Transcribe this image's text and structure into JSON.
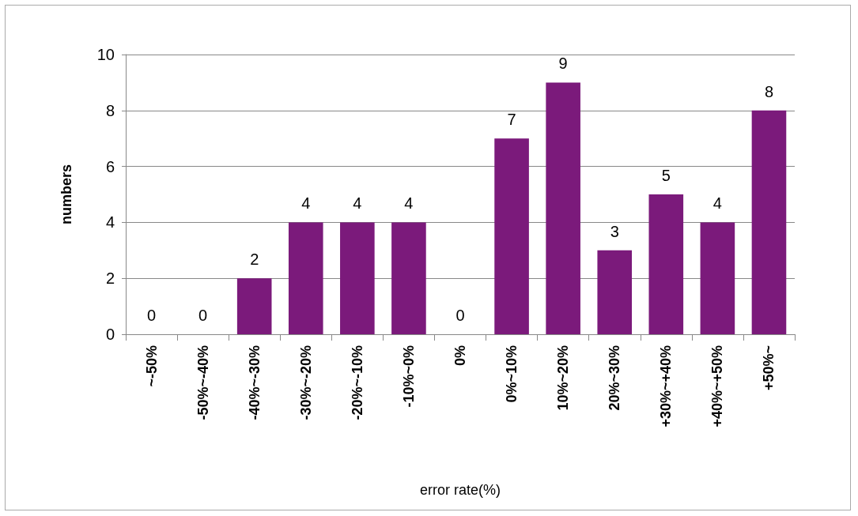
{
  "chart_data": {
    "type": "bar",
    "xlabel": "error rate(%)",
    "ylabel": "numbers",
    "categories": [
      "~-50%",
      "-50%~-40%",
      "-40%~-30%",
      "-30%~-20%",
      "-20%~-10%",
      "-10%~0%",
      "0%",
      "0%~10%",
      "10%~20%",
      "20%~30%",
      "+30%~+40%",
      "+40%~+50%",
      "+50%~"
    ],
    "values": [
      0,
      0,
      2,
      4,
      4,
      4,
      0,
      7,
      9,
      3,
      5,
      4,
      8
    ],
    "color": "#7b1a7b",
    "ylim": [
      0,
      10
    ],
    "yticks": [
      0,
      2,
      4,
      6,
      8,
      10
    ],
    "grid": "y",
    "data_labels": true
  }
}
